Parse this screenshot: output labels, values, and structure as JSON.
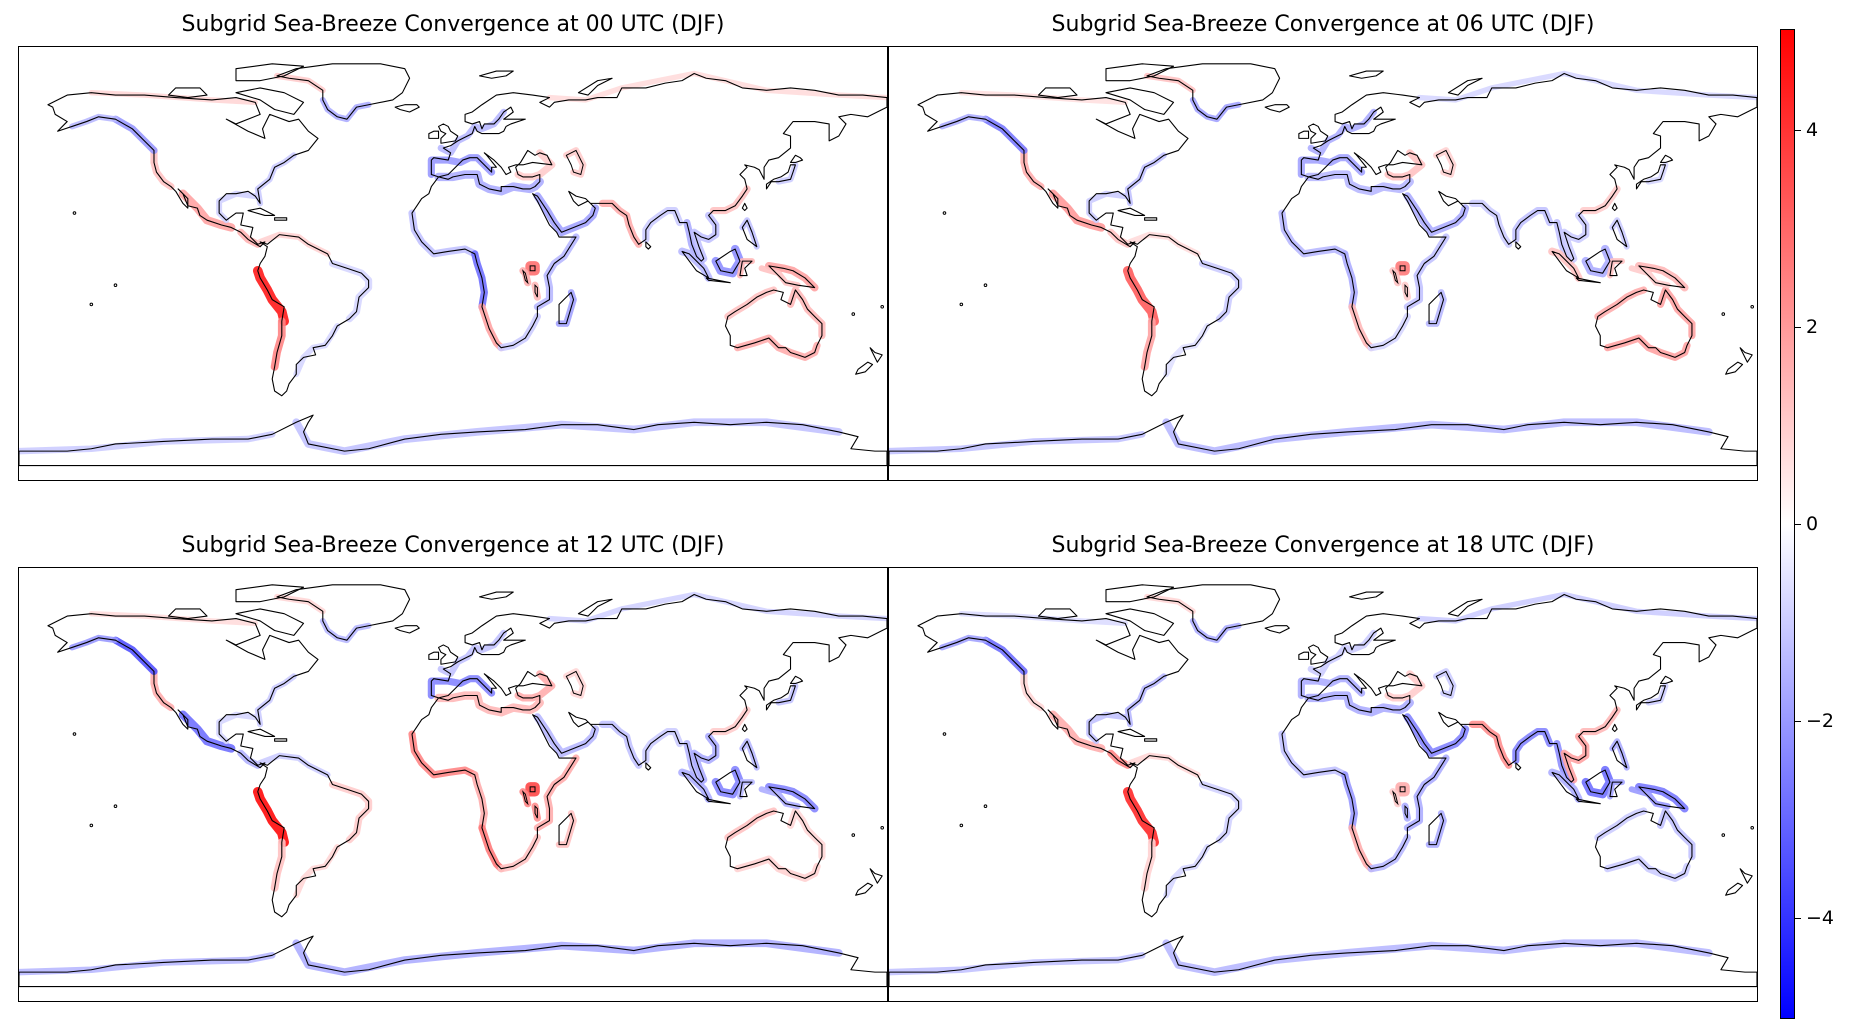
{
  "panels": [
    {
      "title": "Subgrid Sea-Breeze Convergence at 00 UTC (DJF)",
      "utc": "00",
      "season": "DJF"
    },
    {
      "title": "Subgrid Sea-Breeze Convergence at 06 UTC (DJF)",
      "utc": "06",
      "season": "DJF"
    },
    {
      "title": "Subgrid Sea-Breeze Convergence at 12 UTC (DJF)",
      "utc": "12",
      "season": "DJF"
    },
    {
      "title": "Subgrid Sea-Breeze Convergence at 18 UTC (DJF)",
      "utc": "18",
      "season": "DJF"
    }
  ],
  "colorbar": {
    "colormap": "bwr",
    "min": -5,
    "max": 5,
    "ticks": [
      4,
      2,
      0,
      -2,
      -4
    ],
    "tick_labels": [
      "4",
      "2",
      "0",
      "−2",
      "−4"
    ],
    "colors": {
      "low": "#0000ff",
      "mid": "#ffffff",
      "high": "#ff0000"
    }
  },
  "map": {
    "projection": "PlateCarree",
    "coastline_color": "#000000",
    "land_color": "#ffffff",
    "ocean_color": "#ffffff"
  }
}
